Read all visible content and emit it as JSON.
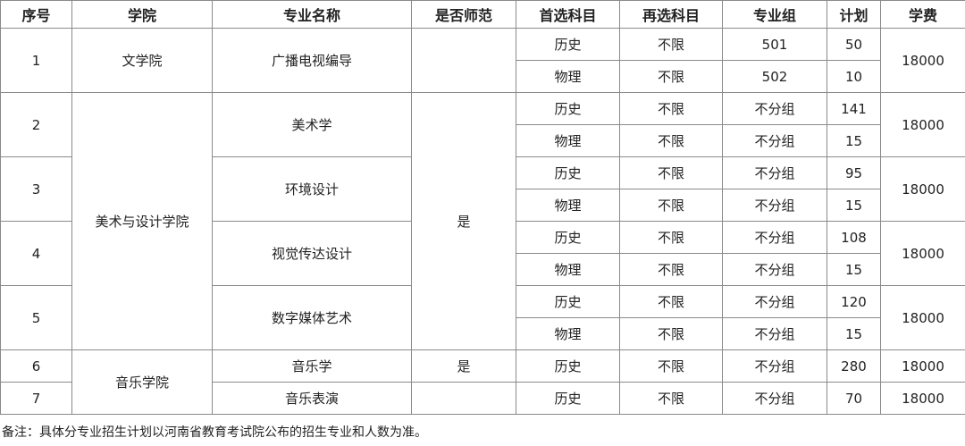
{
  "headers": [
    "序号",
    "学院",
    "专业名称",
    "是否师范",
    "首选科目",
    "再选科目",
    "专业组",
    "计划",
    "学费"
  ],
  "groups": [
    {
      "no": "1",
      "college": "文学院",
      "major": "广播电视编导",
      "normal": "",
      "fee": "18000",
      "rows": [
        [
          "历史",
          "不限",
          "501",
          "50"
        ],
        [
          "物理",
          "不限",
          "502",
          "10"
        ]
      ]
    },
    {
      "no": "2",
      "college": "美术与设计学院",
      "major": "美术学",
      "normal": "是",
      "fee": "18000",
      "rows": [
        [
          "历史",
          "不限",
          "不分组",
          "141"
        ],
        [
          "物理",
          "不限",
          "不分组",
          "15"
        ]
      ]
    },
    {
      "no": "3",
      "major": "环境设计",
      "fee": "18000",
      "rows": [
        [
          "历史",
          "不限",
          "不分组",
          "95"
        ],
        [
          "物理",
          "不限",
          "不分组",
          "15"
        ]
      ]
    },
    {
      "no": "4",
      "major": "视觉传达设计",
      "fee": "18000",
      "rows": [
        [
          "历史",
          "不限",
          "不分组",
          "108"
        ],
        [
          "物理",
          "不限",
          "不分组",
          "15"
        ]
      ]
    },
    {
      "no": "5",
      "major": "数字媒体艺术",
      "fee": "18000",
      "rows": [
        [
          "历史",
          "不限",
          "不分组",
          "120"
        ],
        [
          "物理",
          "不限",
          "不分组",
          "15"
        ]
      ]
    },
    {
      "no": "6",
      "college": "音乐学院",
      "major": "音乐学",
      "normal": "是",
      "fee": "18000",
      "rows": [
        [
          "历史",
          "不限",
          "不分组",
          "280"
        ]
      ]
    },
    {
      "no": "7",
      "major": "音乐表演",
      "normal": "",
      "fee": "18000",
      "rows": [
        [
          "历史",
          "不限",
          "不分组",
          "70"
        ]
      ]
    }
  ],
  "note": "备注：具体分专业招生计划以河南省教育考试院公布的招生专业和人数为准。"
}
